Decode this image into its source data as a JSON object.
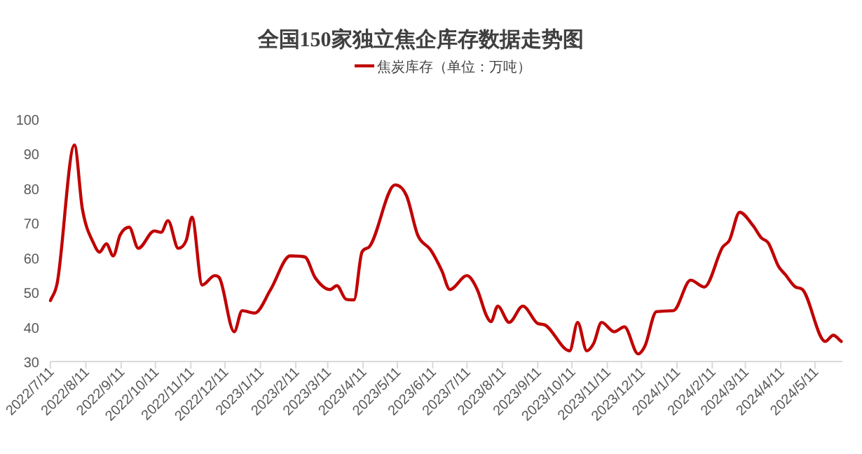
{
  "chart_data": {
    "type": "line",
    "title": "全国150家独立焦企库存数据走势图",
    "x": [
      "2022-07-11",
      "2022-07-17",
      "2022-08-01",
      "2022-08-08",
      "2022-08-18",
      "2022-08-23",
      "2022-08-29",
      "2022-09-04",
      "2022-09-10",
      "2022-09-18",
      "2022-09-26",
      "2022-10-10",
      "2022-10-16",
      "2022-10-22",
      "2022-10-31",
      "2022-11-07",
      "2022-11-12",
      "2022-11-21",
      "2022-12-02",
      "2022-12-06",
      "2022-12-19",
      "2022-12-26",
      "2023-01-06",
      "2023-01-20",
      "2023-02-06",
      "2023-02-19",
      "2023-02-28",
      "2023-03-13",
      "2023-03-19",
      "2023-03-27",
      "2023-04-03",
      "2023-04-10",
      "2023-04-16",
      "2023-05-09",
      "2023-05-19",
      "2023-05-29",
      "2023-06-09",
      "2023-06-19",
      "2023-06-26",
      "2023-07-11",
      "2023-07-20",
      "2023-07-28",
      "2023-08-01",
      "2023-08-07",
      "2023-08-17",
      "2023-08-29",
      "2023-09-11",
      "2023-09-17",
      "2023-10-09",
      "2023-10-16",
      "2023-10-24",
      "2023-10-30",
      "2023-11-06",
      "2023-11-17",
      "2023-11-26",
      "2023-12-08",
      "2023-12-14",
      "2023-12-24",
      "2024-01-08",
      "2024-01-23",
      "2024-02-04",
      "2024-02-20",
      "2024-02-26",
      "2024-03-06",
      "2024-03-18",
      "2024-03-25",
      "2024-03-31",
      "2024-04-09",
      "2024-04-15",
      "2024-04-24",
      "2024-04-30",
      "2024-05-20",
      "2024-05-27",
      "2024-06-03"
    ],
    "series": [
      {
        "name": "焦炭库存（单位：万吨）",
        "color": "#c00000",
        "values": [
          47.6,
          52.8,
          92.5,
          74,
          64,
          61.6,
          64,
          60.5,
          66.5,
          68.8,
          62.7,
          67.7,
          67.3,
          70.7,
          62.7,
          65,
          71.7,
          52.1,
          54.8,
          54.2,
          38.6,
          44.7,
          44,
          50.8,
          60.5,
          60.2,
          54.2,
          50.8,
          51.9,
          48,
          47.8,
          61.6,
          63,
          81,
          77.9,
          66.4,
          62.3,
          56.2,
          50.8,
          54.8,
          50.8,
          43.3,
          41.5,
          46,
          41.3,
          46,
          41,
          40.6,
          33.1,
          41.3,
          33.1,
          35.2,
          41.3,
          38.6,
          40,
          32.2,
          34.5,
          44.4,
          44.7,
          53.5,
          51.5,
          63,
          65,
          73.1,
          69.1,
          65.7,
          64.3,
          57.5,
          55.1,
          51.5,
          50.8,
          35.8,
          37.6,
          35.8
        ]
      }
    ],
    "xlim": [
      "2022-07-11",
      "2024-06-04"
    ],
    "xticks": [
      {
        "value": "2022-07-11",
        "label": "2022/7/11"
      },
      {
        "value": "2022-08-11",
        "label": "2022/8/11"
      },
      {
        "value": "2022-09-11",
        "label": "2022/9/11"
      },
      {
        "value": "2022-10-11",
        "label": "2022/10/11"
      },
      {
        "value": "2022-11-11",
        "label": "2022/11/11"
      },
      {
        "value": "2022-12-11",
        "label": "2022/12/11"
      },
      {
        "value": "2023-01-11",
        "label": "2023/1/11"
      },
      {
        "value": "2023-02-11",
        "label": "2023/2/11"
      },
      {
        "value": "2023-03-11",
        "label": "2023/3/11"
      },
      {
        "value": "2023-04-11",
        "label": "2023/4/11"
      },
      {
        "value": "2023-05-11",
        "label": "2023/5/11"
      },
      {
        "value": "2023-06-11",
        "label": "2023/6/11"
      },
      {
        "value": "2023-07-11",
        "label": "2023/7/11"
      },
      {
        "value": "2023-08-11",
        "label": "2023/8/11"
      },
      {
        "value": "2023-09-11",
        "label": "2023/9/11"
      },
      {
        "value": "2023-10-11",
        "label": "2023/10/11"
      },
      {
        "value": "2023-11-11",
        "label": "2023/11/11"
      },
      {
        "value": "2023-12-11",
        "label": "2023/12/11"
      },
      {
        "value": "2024-01-11",
        "label": "2024/1/11"
      },
      {
        "value": "2024-02-11",
        "label": "2024/2/11"
      },
      {
        "value": "2024-03-11",
        "label": "2024/3/11"
      },
      {
        "value": "2024-04-11",
        "label": "2024/4/11"
      },
      {
        "value": "2024-05-11",
        "label": "2024/5/11"
      }
    ],
    "ylim": [
      30,
      100
    ],
    "yticks": [
      30,
      40,
      50,
      60,
      70,
      80,
      90,
      100
    ],
    "legend": "top"
  }
}
